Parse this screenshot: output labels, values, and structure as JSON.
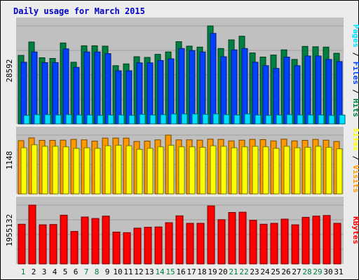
{
  "chart_data": {
    "type": "bar",
    "title": "Daily usage for March 2015",
    "categories": [
      "1",
      "2",
      "3",
      "4",
      "5",
      "6",
      "7",
      "8",
      "9",
      "10",
      "11",
      "12",
      "13",
      "14",
      "15",
      "16",
      "17",
      "18",
      "19",
      "20",
      "21",
      "22",
      "23",
      "24",
      "25",
      "26",
      "27",
      "28",
      "29",
      "30",
      "31"
    ],
    "weekend_days": [
      1,
      7,
      8,
      14,
      15,
      21,
      22,
      28,
      29
    ],
    "panels": [
      {
        "max_label": "28592",
        "ymax": 28592,
        "right_label_parts": [
          "Pages",
          " / ",
          "Files",
          " / ",
          "Hits"
        ],
        "series": [
          {
            "name": "Hits",
            "color": "#008040",
            "values": [
              20000,
              23900,
              19300,
              19100,
              23600,
              18000,
              22800,
              22800,
              22700,
              17000,
              17500,
              19600,
              19400,
              20300,
              21000,
              24000,
              22700,
              22400,
              28600,
              22000,
              24500,
              25600,
              20700,
              19500,
              20100,
              21600,
              18800,
              22600,
              22500,
              22400,
              20600
            ]
          },
          {
            "name": "Files",
            "color": "#0040ff",
            "values": [
              18000,
              21000,
              17900,
              17900,
              21900,
              16500,
              21000,
              21000,
              20500,
              15500,
              15500,
              17800,
              17800,
              18500,
              19000,
              22000,
              21400,
              21000,
              26400,
              19600,
              21600,
              22000,
              18000,
              17000,
              16200,
              19500,
              17000,
              19800,
              19800,
              18800,
              18200
            ]
          },
          {
            "name": "Pages",
            "color": "#00e0ff",
            "values": [
              2500,
              2700,
              2700,
              2600,
              2700,
              2600,
              2600,
              2500,
              2600,
              2600,
              2500,
              2800,
              2600,
              2700,
              2900,
              2900,
              2900,
              2800,
              2900,
              2700,
              2600,
              2900,
              2600,
              2500,
              2600,
              2700,
              2600,
              2600,
              2600,
              2500,
              2600
            ]
          }
        ]
      },
      {
        "max_label": "1148",
        "ymax": 1148,
        "right_label_parts": [
          "Sites",
          " / ",
          "Visits"
        ],
        "series": [
          {
            "name": "Visits",
            "color": "#ff9900",
            "values": [
              1040,
              1094,
              1045,
              1045,
              1050,
              1064,
              1055,
              1030,
              1089,
              1090,
              1089,
              1023,
              1030,
              1055,
              1148,
              1055,
              1055,
              1050,
              1069,
              1064,
              1035,
              1050,
              1064,
              1060,
              1035,
              1069,
              1035,
              1045,
              1064,
              1050,
              1023
            ]
          },
          {
            "name": "Sites",
            "color": "#ffff00",
            "values": [
              900,
              960,
              930,
              930,
              920,
              890,
              900,
              890,
              940,
              950,
              940,
              870,
              890,
              920,
              950,
              920,
              920,
              910,
              940,
              930,
              900,
              920,
              930,
              920,
              890,
              930,
              900,
              910,
              930,
              910,
              880
            ]
          }
        ]
      },
      {
        "max_label": "1955132",
        "ymax": 1955132,
        "right_label_parts": [
          "KBytes"
        ],
        "series": [
          {
            "name": "KBytes",
            "color": "#ff0000",
            "values": [
              1320000,
              1955132,
              1300000,
              1310000,
              1620000,
              1080000,
              1560000,
              1510000,
              1590000,
              1060000,
              1040000,
              1190000,
              1220000,
              1230000,
              1370000,
              1600000,
              1350000,
              1350000,
              1930000,
              1470000,
              1710000,
              1720000,
              1450000,
              1320000,
              1350000,
              1490000,
              1300000,
              1550000,
              1590000,
              1610000,
              1350000
            ]
          }
        ]
      }
    ]
  }
}
